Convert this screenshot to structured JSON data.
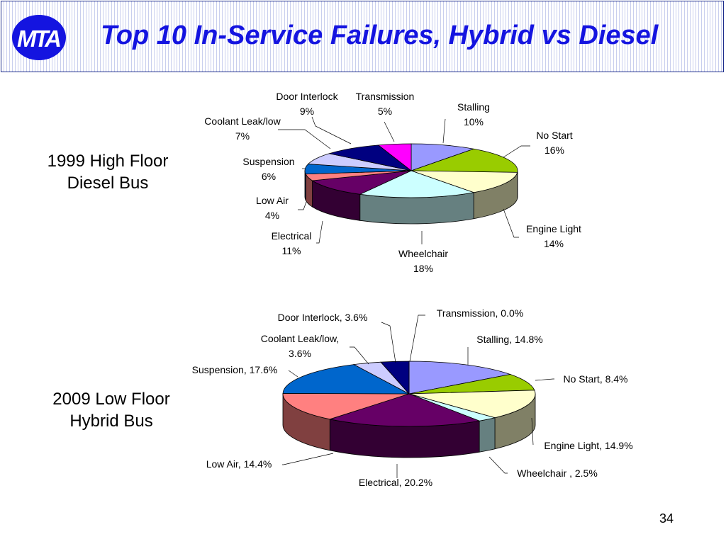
{
  "header": {
    "logo_text": "MTA",
    "title": "Top 10 In-Service Failures, Hybrid vs Diesel"
  },
  "page_number": "34",
  "colors": {
    "title": "#1414e0",
    "header_border": "#1d2d8c"
  },
  "chart_data": [
    {
      "type": "pie",
      "title_lines": [
        "1999 High Floor",
        "Diesel Bus"
      ],
      "slices": [
        {
          "label": "Stalling",
          "value_text": "10%",
          "value": 10,
          "color": "#9999ff"
        },
        {
          "label": "No Start",
          "value_text": "16%",
          "value": 16,
          "color": "#99cc00"
        },
        {
          "label": "Engine Light",
          "value_text": "14%",
          "value": 14,
          "color": "#ffffcc"
        },
        {
          "label": "Wheelchair",
          "value_text": "18%",
          "value": 18,
          "color": "#ccffff"
        },
        {
          "label": "Electrical",
          "value_text": "11%",
          "value": 11,
          "color": "#660066"
        },
        {
          "label": "Low Air",
          "value_text": "4%",
          "value": 4,
          "color": "#ff8080"
        },
        {
          "label": "Suspension",
          "value_text": "6%",
          "value": 6,
          "color": "#0066cc"
        },
        {
          "label": "Coolant Leak/low",
          "value_text": "7%",
          "value": 7,
          "color": "#ccccff"
        },
        {
          "label": "Door Interlock",
          "value_text": "9%",
          "value": 9,
          "color": "#000080"
        },
        {
          "label": "Transmission",
          "value_text": "5%",
          "value": 5,
          "color": "#ff00ff"
        }
      ]
    },
    {
      "type": "pie",
      "title_lines": [
        "2009 Low Floor",
        "Hybrid Bus"
      ],
      "slices": [
        {
          "label": "Stalling",
          "value_text": "14.8%",
          "value": 14.8,
          "color": "#9999ff"
        },
        {
          "label": "No Start",
          "value_text": "8.4%",
          "value": 8.4,
          "color": "#99cc00"
        },
        {
          "label": "Engine Light",
          "value_text": "14.9%",
          "value": 14.9,
          "color": "#ffffcc"
        },
        {
          "label": "Wheelchair ",
          "value_text": "2.5%",
          "value": 2.5,
          "color": "#ccffff"
        },
        {
          "label": "Electrical",
          "value_text": "20.2%",
          "value": 20.2,
          "color": "#660066"
        },
        {
          "label": "Low Air",
          "value_text": "14.4%",
          "value": 14.4,
          "color": "#ff8080"
        },
        {
          "label": "Suspension",
          "value_text": "17.6%",
          "value": 17.6,
          "color": "#0066cc"
        },
        {
          "label": "Coolant Leak/low",
          "value_text": "3.6%",
          "value": 3.6,
          "color": "#ccccff"
        },
        {
          "label": "Door Interlock",
          "value_text": "3.6%",
          "value": 3.6,
          "color": "#000080"
        },
        {
          "label": "Transmission",
          "value_text": "0.0%",
          "value": 0.0,
          "color": "#ff00ff"
        }
      ]
    }
  ]
}
